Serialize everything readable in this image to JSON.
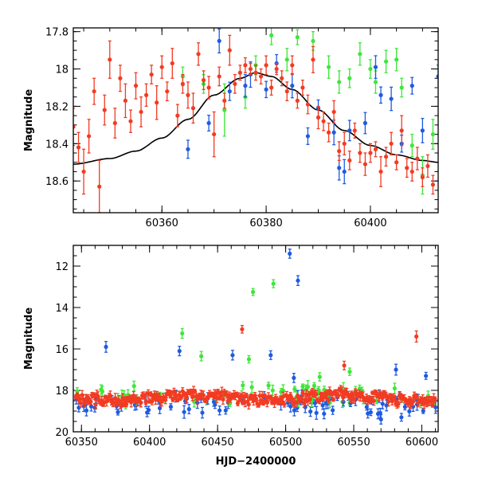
{
  "colors": {
    "red": "#f23b22",
    "green": "#3fe63a",
    "blue": "#1f5be0",
    "model": "#000000"
  },
  "chart_data": [
    {
      "type": "scatter",
      "ylabel": "Magnitude",
      "xlabel": "",
      "xlim": [
        60343,
        60413
      ],
      "ylim": [
        18.77,
        17.78
      ],
      "y_inverted": true,
      "grid": false,
      "legend": "none",
      "xticks": [
        60360,
        60380,
        60400
      ],
      "yticks": [
        17.8,
        18,
        18.2,
        18.4,
        18.6
      ],
      "model_curve": {
        "peak_x": 60378,
        "peak_y": 18.02,
        "x": [
          60343,
          60350,
          60355,
          60360,
          60365,
          60370,
          60375,
          60378,
          60381,
          60385,
          60390,
          60395,
          60400,
          60405,
          60410,
          60413
        ],
        "y": [
          18.51,
          18.48,
          18.44,
          18.37,
          18.27,
          18.14,
          18.05,
          18.02,
          18.04,
          18.11,
          18.22,
          18.33,
          18.41,
          18.46,
          18.49,
          18.5
        ]
      },
      "series": [
        {
          "color": "red",
          "x": [
            60343,
            60344,
            60345,
            60346,
            60347,
            60348,
            60349,
            60350,
            60351,
            60352,
            60353,
            60354,
            60355,
            60356,
            60357,
            60358,
            60359,
            60360,
            60361,
            60362,
            60363,
            60364,
            60365,
            60366,
            60367,
            60368,
            60369,
            60370,
            60371,
            60372,
            60373,
            60374,
            60375,
            60376,
            60377,
            60378,
            60379,
            60380,
            60381,
            60382,
            60383,
            60384,
            60385,
            60386,
            60387,
            60388,
            60389,
            60390,
            60391,
            60392,
            60393,
            60394,
            60395,
            60396,
            60397,
            60398,
            60399,
            60400,
            60401,
            60402,
            60403,
            60404,
            60405,
            60406,
            60407,
            60408,
            60409,
            60410,
            60411,
            60412
          ],
          "y": [
            18.31,
            18.42,
            18.55,
            18.36,
            18.12,
            18.63,
            18.22,
            17.95,
            18.29,
            18.05,
            18.17,
            18.28,
            18.09,
            18.23,
            18.14,
            18.03,
            18.18,
            17.99,
            18.12,
            17.97,
            18.25,
            18.08,
            18.14,
            18.21,
            17.92,
            18.06,
            18.1,
            18.35,
            18.04,
            18.17,
            17.9,
            18.08,
            18.02,
            17.98,
            18.0,
            18.02,
            18.04,
            17.98,
            18.1,
            18.0,
            18.05,
            18.12,
            17.98,
            18.17,
            18.1,
            18.19,
            17.95,
            18.26,
            18.28,
            18.34,
            18.23,
            18.44,
            18.4,
            18.49,
            18.33,
            18.45,
            18.51,
            18.45,
            18.43,
            18.55,
            18.47,
            18.4,
            18.5,
            18.33,
            18.53,
            18.55,
            18.48,
            18.58,
            18.52,
            18.62
          ],
          "err": [
            0.1,
            0.08,
            0.12,
            0.09,
            0.07,
            0.14,
            0.08,
            0.1,
            0.08,
            0.07,
            0.09,
            0.06,
            0.07,
            0.08,
            0.06,
            0.05,
            0.09,
            0.06,
            0.05,
            0.08,
            0.06,
            0.05,
            0.07,
            0.08,
            0.06,
            0.05,
            0.06,
            0.12,
            0.05,
            0.04,
            0.08,
            0.05,
            0.04,
            0.04,
            0.03,
            0.04,
            0.04,
            0.05,
            0.04,
            0.03,
            0.04,
            0.05,
            0.05,
            0.04,
            0.04,
            0.05,
            0.07,
            0.06,
            0.05,
            0.05,
            0.06,
            0.05,
            0.06,
            0.05,
            0.04,
            0.05,
            0.06,
            0.05,
            0.04,
            0.08,
            0.05,
            0.06,
            0.04,
            0.08,
            0.05,
            0.05,
            0.06,
            0.05,
            0.06,
            0.05
          ]
        },
        {
          "color": "green",
          "x": [
            60364,
            60368,
            60372,
            60376,
            60378,
            60381,
            60384,
            60386,
            60389,
            60392,
            60394,
            60396,
            60398,
            60400,
            60401,
            60403,
            60405,
            60406,
            60408,
            60410,
            60412
          ],
          "y": [
            18.04,
            18.08,
            18.22,
            18.15,
            17.98,
            17.82,
            17.95,
            17.83,
            17.85,
            17.99,
            18.07,
            18.05,
            17.92,
            18.0,
            18.07,
            17.96,
            17.95,
            18.1,
            18.41,
            18.57,
            18.35
          ],
          "err": [
            0.05,
            0.05,
            0.14,
            0.06,
            0.05,
            0.05,
            0.06,
            0.04,
            0.05,
            0.06,
            0.06,
            0.05,
            0.06,
            0.05,
            0.06,
            0.06,
            0.06,
            0.05,
            0.06,
            0.1,
            0.08
          ]
        },
        {
          "color": "blue",
          "x": [
            60365,
            60369,
            60371,
            60373,
            60376,
            60377,
            60380,
            60382,
            60385,
            60388,
            60390,
            60393,
            60394,
            60395,
            60396,
            60399,
            60401,
            60402,
            60404,
            60406,
            60408,
            60410,
            60413
          ],
          "y": [
            18.43,
            18.29,
            17.85,
            18.12,
            18.09,
            18.03,
            18.11,
            17.97,
            18.09,
            18.36,
            18.21,
            18.34,
            18.53,
            18.55,
            18.33,
            18.29,
            17.99,
            18.14,
            18.16,
            18.4,
            18.09,
            18.33,
            18.04
          ]
        }
      ]
    },
    {
      "type": "scatter",
      "ylabel": "Magnitude",
      "xlabel": "HJD−2400000",
      "xlim": [
        60344,
        60612
      ],
      "ylim": [
        20,
        11
      ],
      "y_inverted": true,
      "grid": false,
      "legend": "none",
      "xticks": [
        60350,
        60400,
        60450,
        60500,
        60550,
        60600
      ],
      "yticks": [
        12,
        14,
        16,
        18,
        20
      ],
      "outliers": [
        {
          "color": "blue",
          "x": 60503,
          "y": 11.4
        },
        {
          "color": "blue",
          "x": 60509,
          "y": 12.7
        },
        {
          "color": "green",
          "x": 60491,
          "y": 12.85
        },
        {
          "color": "green",
          "x": 60476,
          "y": 13.25
        },
        {
          "color": "red",
          "x": 60468,
          "y": 15.05
        },
        {
          "color": "green",
          "x": 60424,
          "y": 15.25
        },
        {
          "color": "red",
          "x": 60596,
          "y": 15.4
        },
        {
          "color": "blue",
          "x": 60368,
          "y": 15.9
        },
        {
          "color": "blue",
          "x": 60422,
          "y": 16.1
        },
        {
          "color": "green",
          "x": 60438,
          "y": 16.35
        },
        {
          "color": "green",
          "x": 60473,
          "y": 16.5
        },
        {
          "color": "blue",
          "x": 60461,
          "y": 16.3
        },
        {
          "color": "blue",
          "x": 60489,
          "y": 16.3
        },
        {
          "color": "red",
          "x": 60543,
          "y": 16.8
        },
        {
          "color": "green",
          "x": 60547,
          "y": 17.1
        },
        {
          "color": "blue",
          "x": 60581,
          "y": 17.0
        },
        {
          "color": "blue",
          "x": 60603,
          "y": 17.3
        },
        {
          "color": "blue",
          "x": 60506,
          "y": 17.4
        },
        {
          "color": "green",
          "x": 60525,
          "y": 17.35
        },
        {
          "color": "blue",
          "x": 60570,
          "y": 19.4
        },
        {
          "color": "blue",
          "x": 60585,
          "y": 19.3
        }
      ]
    }
  ]
}
